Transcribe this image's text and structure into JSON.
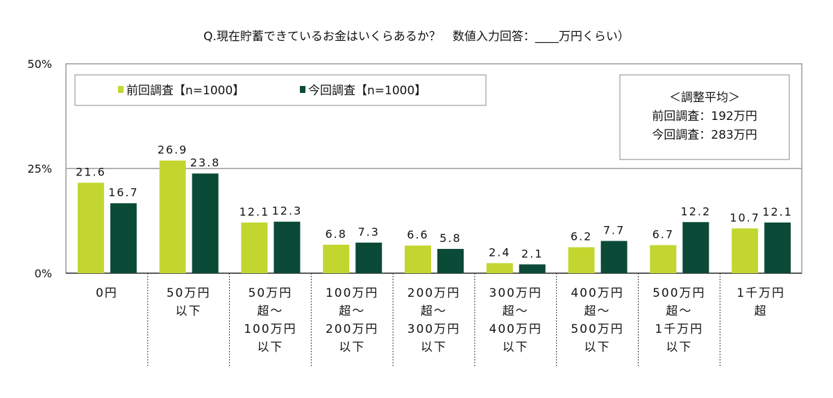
{
  "chart_data": {
    "type": "bar",
    "title": "Q.現在貯蓄できているお金はいくらあるか？　数値入力回答：____万円くらい）",
    "categories": [
      [
        "0円"
      ],
      [
        "50万円",
        "以下"
      ],
      [
        "50万円",
        "超～",
        "100万円",
        "以下"
      ],
      [
        "100万円",
        "超～",
        "200万円",
        "以下"
      ],
      [
        "200万円",
        "超～",
        "300万円",
        "以下"
      ],
      [
        "300万円",
        "超～",
        "400万円",
        "以下"
      ],
      [
        "400万円",
        "超～",
        "500万円",
        "以下"
      ],
      [
        "500万円",
        "超～",
        "1千万円",
        "以下"
      ],
      [
        "1千万円",
        "超"
      ]
    ],
    "series": [
      {
        "name": "前回調査【n=1000】",
        "color": "#c3d62f",
        "values": [
          21.6,
          26.9,
          12.1,
          6.8,
          6.6,
          2.4,
          6.2,
          6.7,
          10.7
        ]
      },
      {
        "name": "今回調査【n=1000】",
        "color": "#0b4a36",
        "values": [
          16.7,
          23.8,
          12.3,
          7.3,
          5.8,
          2.1,
          7.7,
          12.2,
          12.1
        ]
      }
    ],
    "ylim": [
      0,
      50
    ],
    "yticks": [
      "0%",
      "25%",
      "50%"
    ],
    "ytick_values": [
      0,
      25,
      50
    ],
    "grid": true,
    "legend": "top-left",
    "annotation": [
      "＜調整平均＞",
      "前回調査：192万円",
      "今回調査：283万円"
    ]
  }
}
